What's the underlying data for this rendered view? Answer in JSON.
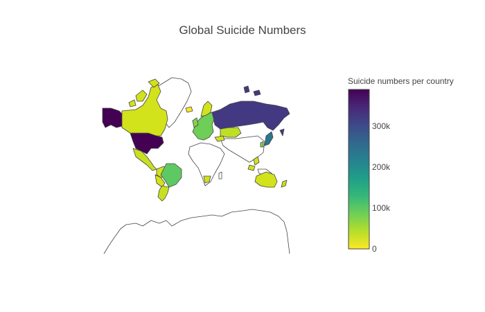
{
  "map": {
    "title": "Global Suicide Numbers",
    "colorbar": {
      "title": "Suicide numbers per country",
      "range": [
        0,
        390000
      ],
      "colorscale": "Viridis (reversed)",
      "stops": [
        "#fde725",
        "#b5de2b",
        "#6ece58",
        "#35b779",
        "#1f9e89",
        "#26828e",
        "#31688e",
        "#3e4989",
        "#482878",
        "#440154"
      ],
      "ticks": [
        "0",
        "100k",
        "200k",
        "300k"
      ]
    },
    "regions": [
      {
        "name": "United States",
        "color": "#440154"
      },
      {
        "name": "Russia",
        "color": "#433982"
      },
      {
        "name": "Alaska",
        "color": "#440154"
      },
      {
        "name": "Canada",
        "color": "#d2e21b"
      },
      {
        "name": "Greenland",
        "color": "#ffffff"
      },
      {
        "name": "Mexico",
        "color": "#c8e020"
      },
      {
        "name": "Brazil",
        "color": "#5ec962"
      },
      {
        "name": "Argentina",
        "color": "#c8e020"
      },
      {
        "name": "Colombia",
        "color": "#d2e21b"
      },
      {
        "name": "Kazakhstan",
        "color": "#bddf26"
      },
      {
        "name": "Japan",
        "color": "#2a788e"
      },
      {
        "name": "South Korea",
        "color": "#84d44b"
      },
      {
        "name": "Australia",
        "color": "#d2e21b"
      },
      {
        "name": "Europe",
        "color": "#6ece58"
      }
    ]
  }
}
